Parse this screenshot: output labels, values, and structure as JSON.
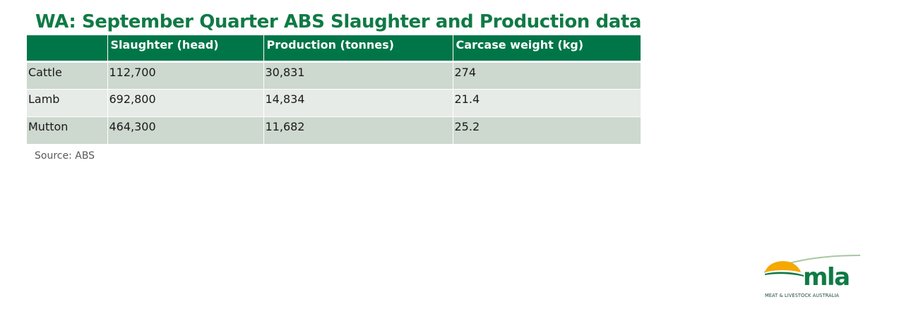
{
  "slide": {
    "title": "WA: September Quarter ABS Slaughter and Production data",
    "source": "Source: ABS"
  },
  "table": {
    "headers": [
      "",
      "Slaughter (head)",
      "Production (tonnes)",
      "Carcase weight (kg)"
    ],
    "rows": [
      [
        "Cattle",
        "112,700",
        "30,831",
        "274"
      ],
      [
        "Lamb",
        "692,800",
        "14,834",
        "21.4"
      ],
      [
        "Mutton",
        "464,300",
        "11,682",
        "25.2"
      ]
    ]
  },
  "logo": {
    "text": "mla",
    "tagline": "MEAT & LIVESTOCK AUSTRALIA",
    "colors": {
      "green": "#0f7a45",
      "sun": "#f5a800",
      "swoosh": "#a7c8a0"
    }
  }
}
